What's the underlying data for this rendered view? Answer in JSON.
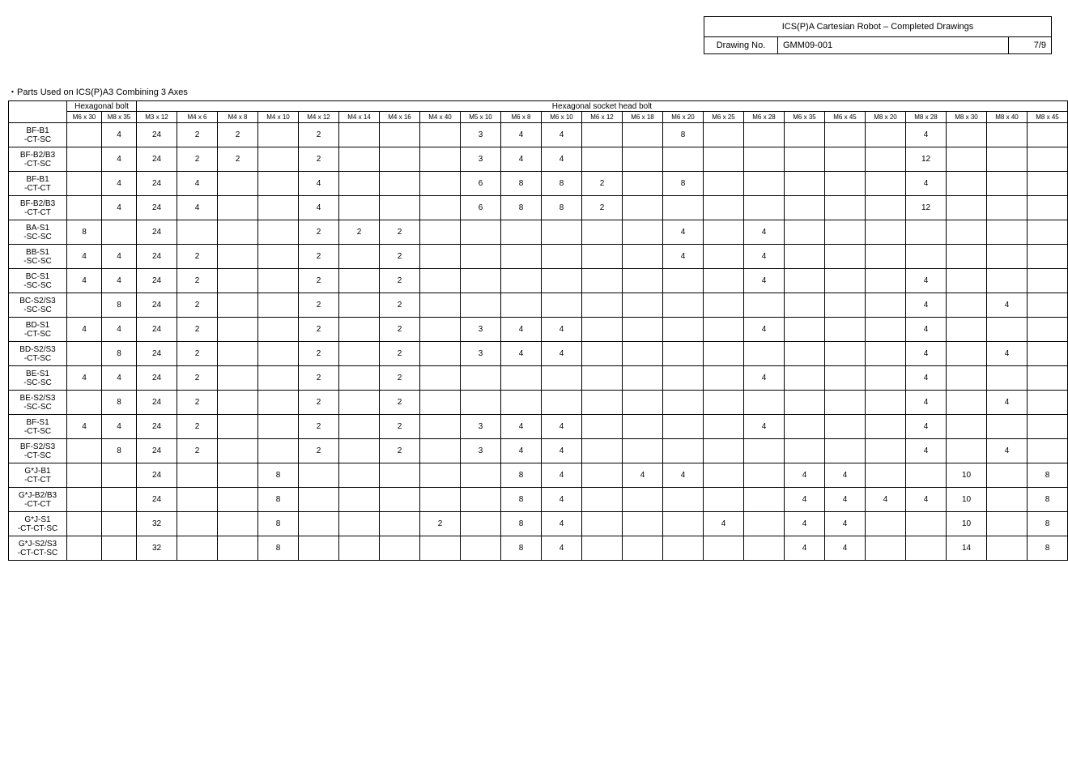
{
  "header": {
    "title": "ICS(P)A Cartesian Robot – Completed Drawings",
    "drawing_no_label": "Drawing No.",
    "drawing_no_value": "GMM09-001",
    "page": "7/9"
  },
  "caption": "・Parts Used on ICS(P)A3 Combining 3 Axes",
  "group1_label": "Hexagonal bolt",
  "group2_label": "Hexagonal socket head bolt",
  "columns1": [
    "M6 x 30",
    "M8 x 35"
  ],
  "columns2": [
    "M3 x 12",
    "M4 x 6",
    "M4 x 8",
    "M4 x 10",
    "M4 x 12",
    "M4 x 14",
    "M4 x 16",
    "M4 x 40",
    "M5 x 10",
    "M6 x 8",
    "M6 x 10",
    "M6 x 12",
    "M6 x 18",
    "M6 x 20",
    "M6 x 25",
    "M6 x 28",
    "M6 x 35",
    "M6 x 45",
    "M8 x 20",
    "M8 x 28",
    "M8 x 30",
    "M8 x 40",
    "M8 x 45"
  ],
  "rows": [
    {
      "label": "BF-B1\n-CT-SC",
      "c": [
        "",
        "4",
        "24",
        "2",
        "2",
        "",
        "2",
        "",
        "",
        "",
        "3",
        "4",
        "4",
        "",
        "",
        "8",
        "",
        "",
        "",
        "",
        "",
        "4",
        "",
        "",
        ""
      ]
    },
    {
      "label": "BF-B2/B3\n-CT-SC",
      "c": [
        "",
        "4",
        "24",
        "2",
        "2",
        "",
        "2",
        "",
        "",
        "",
        "3",
        "4",
        "4",
        "",
        "",
        "",
        "",
        "",
        "",
        "",
        "",
        "12",
        "",
        "",
        ""
      ]
    },
    {
      "label": "BF-B1\n-CT-CT",
      "c": [
        "",
        "4",
        "24",
        "4",
        "",
        "",
        "4",
        "",
        "",
        "",
        "6",
        "8",
        "8",
        "2",
        "",
        "8",
        "",
        "",
        "",
        "",
        "",
        "4",
        "",
        "",
        ""
      ]
    },
    {
      "label": "BF-B2/B3\n-CT-CT",
      "c": [
        "",
        "4",
        "24",
        "4",
        "",
        "",
        "4",
        "",
        "",
        "",
        "6",
        "8",
        "8",
        "2",
        "",
        "",
        "",
        "",
        "",
        "",
        "",
        "12",
        "",
        "",
        ""
      ]
    },
    {
      "label": "BA-S1\n-SC-SC",
      "c": [
        "8",
        "",
        "24",
        "",
        "",
        "",
        "2",
        "2",
        "2",
        "",
        "",
        "",
        "",
        "",
        "",
        "4",
        "",
        "4",
        "",
        "",
        "",
        "",
        "",
        "",
        ""
      ]
    },
    {
      "label": "BB-S1\n-SC-SC",
      "c": [
        "4",
        "4",
        "24",
        "2",
        "",
        "",
        "2",
        "",
        "2",
        "",
        "",
        "",
        "",
        "",
        "",
        "4",
        "",
        "4",
        "",
        "",
        "",
        "",
        "",
        "",
        ""
      ]
    },
    {
      "label": "BC-S1\n-SC-SC",
      "c": [
        "4",
        "4",
        "24",
        "2",
        "",
        "",
        "2",
        "",
        "2",
        "",
        "",
        "",
        "",
        "",
        "",
        "",
        "",
        "4",
        "",
        "",
        "",
        "4",
        "",
        "",
        ""
      ]
    },
    {
      "label": "BC-S2/S3\n-SC-SC",
      "c": [
        "",
        "8",
        "24",
        "2",
        "",
        "",
        "2",
        "",
        "2",
        "",
        "",
        "",
        "",
        "",
        "",
        "",
        "",
        "",
        "",
        "",
        "",
        "4",
        "",
        "4",
        ""
      ]
    },
    {
      "label": "BD-S1\n-CT-SC",
      "c": [
        "4",
        "4",
        "24",
        "2",
        "",
        "",
        "2",
        "",
        "2",
        "",
        "3",
        "4",
        "4",
        "",
        "",
        "",
        "",
        "4",
        "",
        "",
        "",
        "4",
        "",
        "",
        ""
      ]
    },
    {
      "label": "BD-S2/S3\n-CT-SC",
      "c": [
        "",
        "8",
        "24",
        "2",
        "",
        "",
        "2",
        "",
        "2",
        "",
        "3",
        "4",
        "4",
        "",
        "",
        "",
        "",
        "",
        "",
        "",
        "",
        "4",
        "",
        "4",
        ""
      ]
    },
    {
      "label": "BE-S1\n-SC-SC",
      "c": [
        "4",
        "4",
        "24",
        "2",
        "",
        "",
        "2",
        "",
        "2",
        "",
        "",
        "",
        "",
        "",
        "",
        "",
        "",
        "4",
        "",
        "",
        "",
        "4",
        "",
        "",
        ""
      ]
    },
    {
      "label": "BE-S2/S3\n-SC-SC",
      "c": [
        "",
        "8",
        "24",
        "2",
        "",
        "",
        "2",
        "",
        "2",
        "",
        "",
        "",
        "",
        "",
        "",
        "",
        "",
        "",
        "",
        "",
        "",
        "4",
        "",
        "4",
        ""
      ]
    },
    {
      "label": "BF-S1\n-CT-SC",
      "c": [
        "4",
        "4",
        "24",
        "2",
        "",
        "",
        "2",
        "",
        "2",
        "",
        "3",
        "4",
        "4",
        "",
        "",
        "",
        "",
        "4",
        "",
        "",
        "",
        "4",
        "",
        "",
        ""
      ]
    },
    {
      "label": "BF-S2/S3\n-CT-SC",
      "c": [
        "",
        "8",
        "24",
        "2",
        "",
        "",
        "2",
        "",
        "2",
        "",
        "3",
        "4",
        "4",
        "",
        "",
        "",
        "",
        "",
        "",
        "",
        "",
        "4",
        "",
        "4",
        ""
      ]
    },
    {
      "label": "G*J-B1\n-CT-CT",
      "c": [
        "",
        "",
        "24",
        "",
        "",
        "8",
        "",
        "",
        "",
        "",
        "",
        "8",
        "4",
        "",
        "4",
        "4",
        "",
        "",
        "4",
        "4",
        "",
        "",
        "10",
        "",
        "8"
      ]
    },
    {
      "label": "G*J-B2/B3\n-CT-CT",
      "c": [
        "",
        "",
        "24",
        "",
        "",
        "8",
        "",
        "",
        "",
        "",
        "",
        "8",
        "4",
        "",
        "",
        "",
        "",
        "",
        "4",
        "4",
        "4",
        "4",
        "10",
        "",
        "8"
      ]
    },
    {
      "label": "G*J-S1\n-CT-CT-SC",
      "c": [
        "",
        "",
        "32",
        "",
        "",
        "8",
        "",
        "",
        "",
        "2",
        "",
        "8",
        "4",
        "",
        "",
        "",
        "4",
        "",
        "4",
        "4",
        "",
        "",
        "10",
        "",
        "8"
      ]
    },
    {
      "label": "G*J-S2/S3\n-CT-CT-SC",
      "c": [
        "",
        "",
        "32",
        "",
        "",
        "8",
        "",
        "",
        "",
        "",
        "",
        "8",
        "4",
        "",
        "",
        "",
        "",
        "",
        "4",
        "4",
        "",
        "",
        "14",
        "",
        "8"
      ]
    }
  ]
}
